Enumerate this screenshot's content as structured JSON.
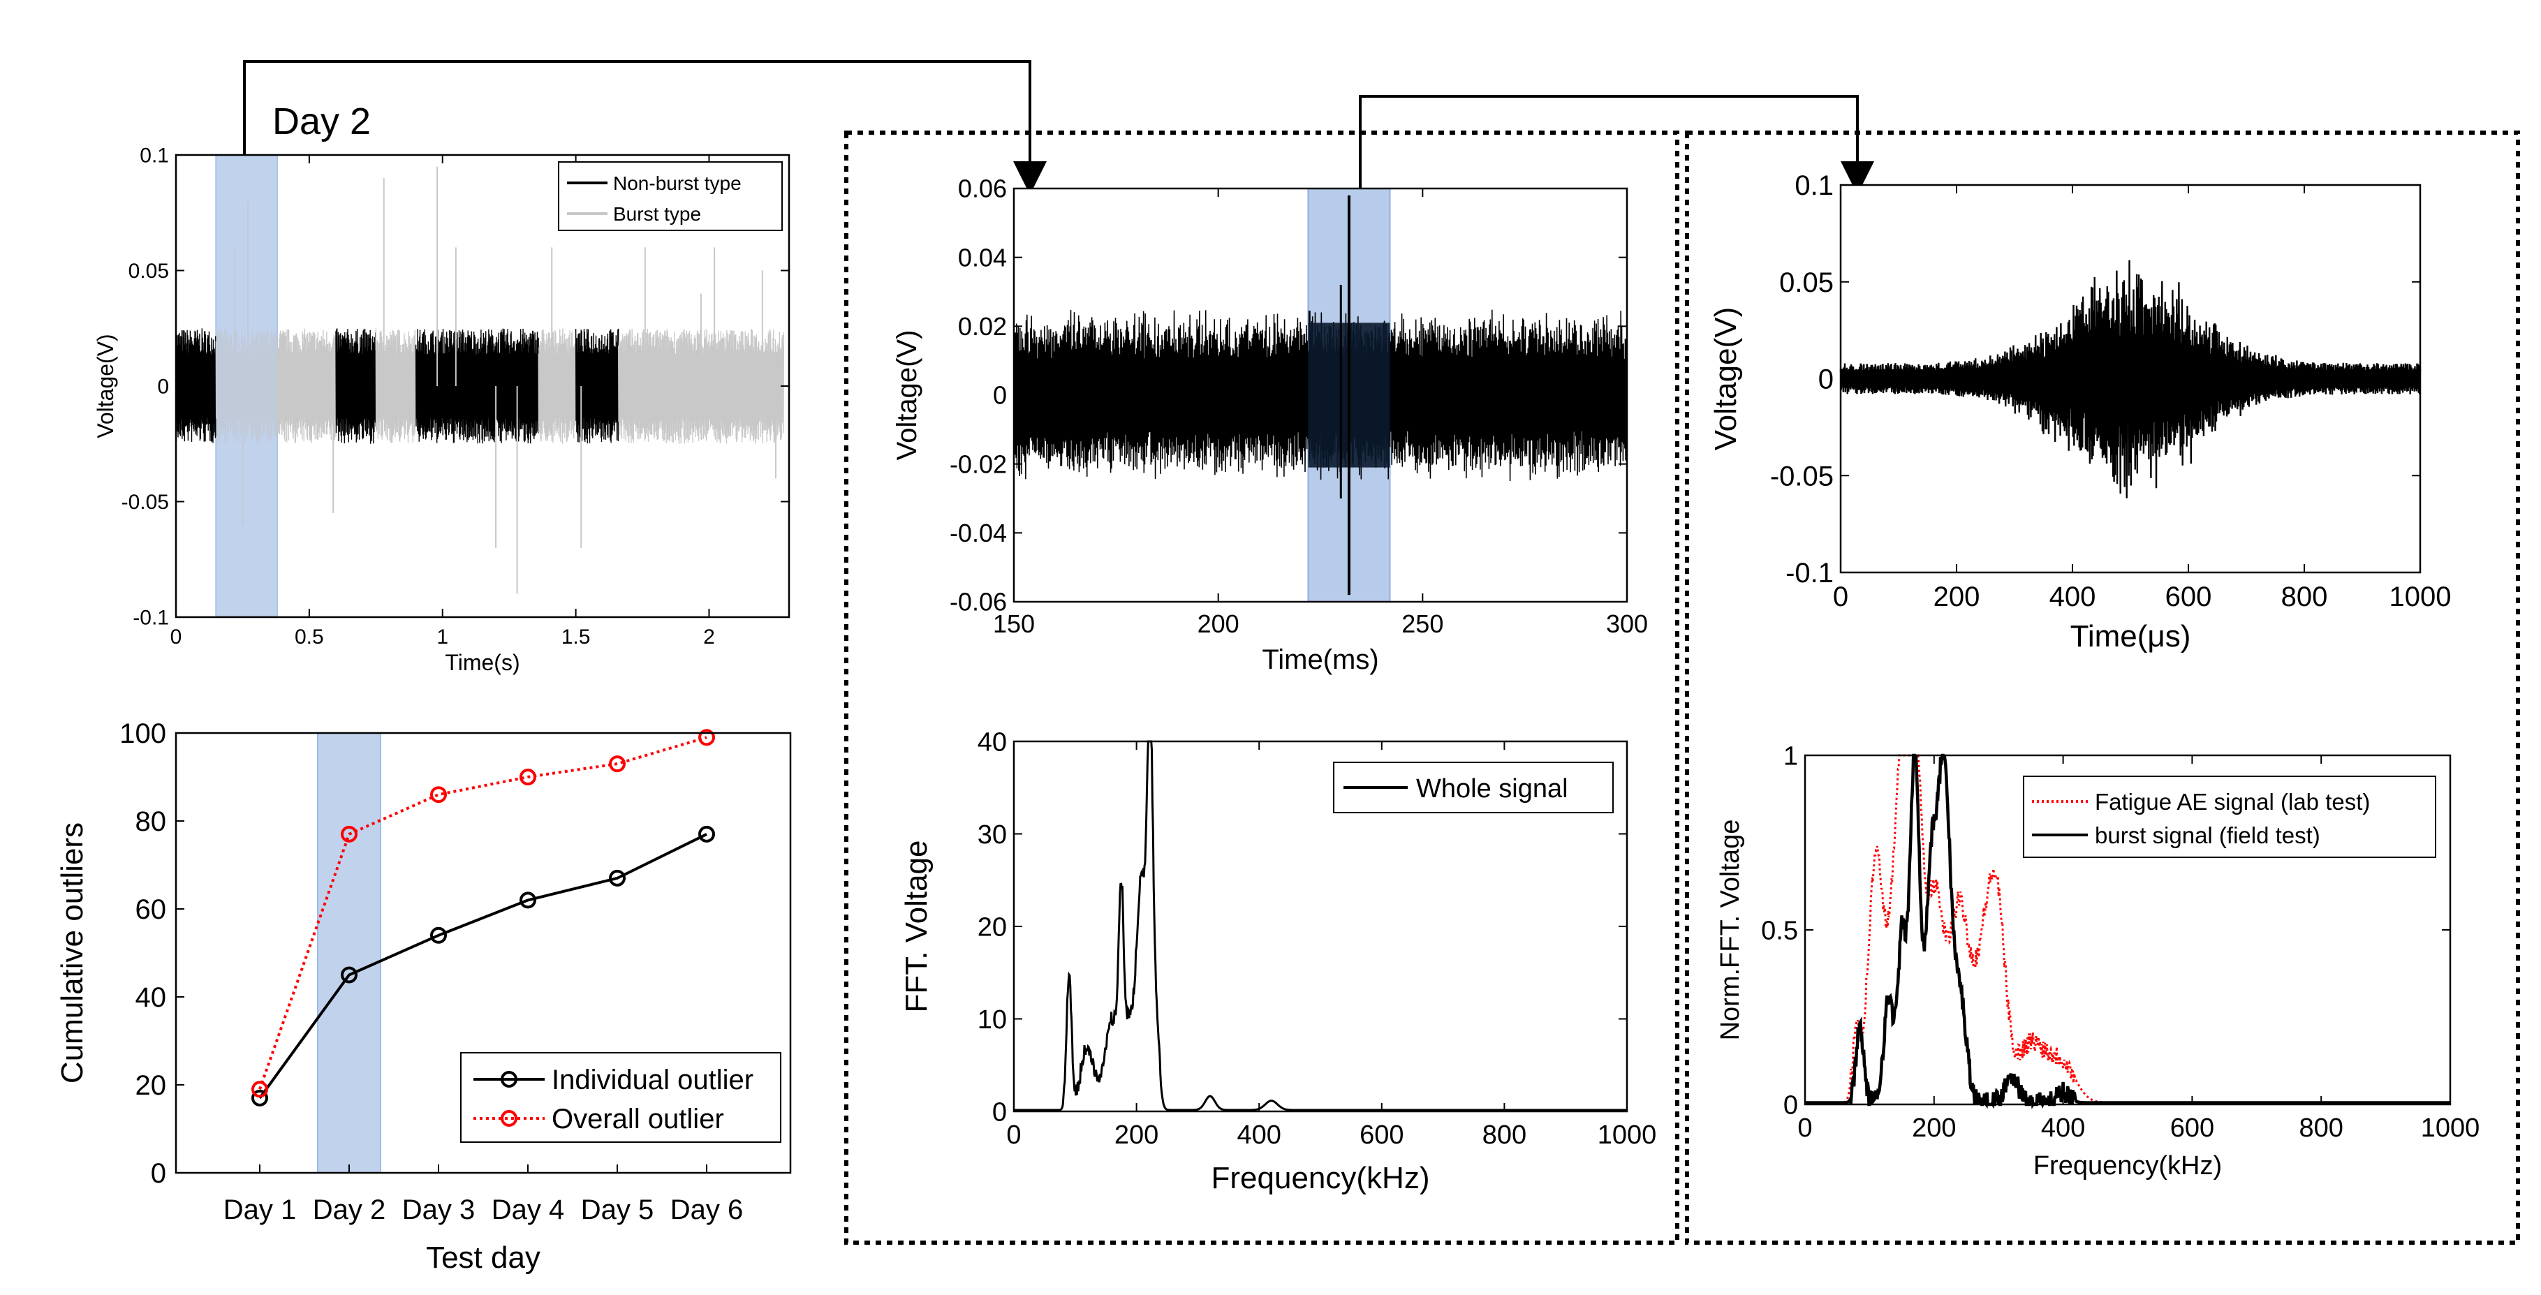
{
  "colors": {
    "black": "#000000",
    "gray": "#c8c8c8",
    "red": "#ff0000",
    "highlight_fill": "#b7cbea",
    "highlight_stroke": "#8fb0e0",
    "dark_fill": "#0b1a2e"
  },
  "annotation": {
    "day_label": "Day 2"
  },
  "chart_data": [
    {
      "id": "daily_signal",
      "type": "line",
      "xlabel": "Time(s)",
      "ylabel": "Voltage(V)",
      "xlim": [
        0,
        2.3
      ],
      "ylim": [
        -0.1,
        0.1
      ],
      "xticks": [
        0,
        0.5,
        1,
        1.5,
        2
      ],
      "xtick_labels": [
        "0",
        "0.5",
        "1",
        "1.5",
        "2"
      ],
      "yticks": [
        -0.1,
        -0.05,
        0,
        0.05,
        0.1
      ],
      "ytick_labels": [
        "-0.1",
        "-0.05",
        "0",
        "0.05",
        "0.1"
      ],
      "legend": [
        "Non-burst type",
        "Burst type"
      ],
      "legend_placement": "top-right",
      "highlight_x": [
        0.15,
        0.38
      ],
      "segments": [
        {
          "type": "Non-burst type",
          "x": [
            0,
            0.15
          ]
        },
        {
          "type": "Burst type",
          "x": [
            0.15,
            0.6
          ]
        },
        {
          "type": "Non-burst type",
          "x": [
            0.6,
            0.75
          ]
        },
        {
          "type": "Burst type",
          "x": [
            0.75,
            0.9
          ]
        },
        {
          "type": "Non-burst type",
          "x": [
            0.9,
            1.36
          ]
        },
        {
          "type": "Burst type",
          "x": [
            1.36,
            1.5
          ]
        },
        {
          "type": "Non-burst type",
          "x": [
            1.5,
            1.66
          ]
        },
        {
          "type": "Burst type",
          "x": [
            1.66,
            2.28
          ]
        }
      ],
      "noise_amplitude": 0.025,
      "spikes": [
        [
          0.22,
          0.06
        ],
        [
          0.25,
          -0.06
        ],
        [
          0.27,
          0.08
        ],
        [
          0.59,
          -0.055
        ],
        [
          0.78,
          0.09
        ],
        [
          0.98,
          0.095
        ],
        [
          1.05,
          0.06
        ],
        [
          1.2,
          -0.07
        ],
        [
          1.28,
          -0.09
        ],
        [
          1.41,
          0.06
        ],
        [
          1.52,
          -0.07
        ],
        [
          1.76,
          0.06
        ],
        [
          1.97,
          0.04
        ],
        [
          2.02,
          0.06
        ],
        [
          2.2,
          0.05
        ],
        [
          2.25,
          -0.04
        ]
      ]
    },
    {
      "id": "cumulative_outliers",
      "type": "line",
      "xlabel": "Test day",
      "ylabel": "Cumulative outliers",
      "categories": [
        "Day 1",
        "Day 2",
        "Day 3",
        "Day 4",
        "Day 5",
        "Day 6"
      ],
      "ylim": [
        0,
        100
      ],
      "yticks": [
        0,
        20,
        40,
        60,
        80,
        100
      ],
      "ytick_labels": [
        "0",
        "20",
        "40",
        "60",
        "80",
        "100"
      ],
      "legend_placement": "bottom-right",
      "highlight_category": "Day 2",
      "series": [
        {
          "name": "Individual outlier",
          "color": "#000000",
          "style": "solid",
          "values": [
            17,
            45,
            54,
            62,
            67,
            77
          ]
        },
        {
          "name": "Overall outlier",
          "color": "#ff0000",
          "style": "dotted",
          "values": [
            19,
            77,
            86,
            90,
            93,
            99
          ]
        }
      ]
    },
    {
      "id": "zoomed_signal",
      "type": "line",
      "xlabel": "Time(ms)",
      "ylabel": "Voltage(V)",
      "xlim": [
        150,
        300
      ],
      "ylim": [
        -0.06,
        0.06
      ],
      "xticks": [
        150,
        200,
        250,
        300
      ],
      "xtick_labels": [
        "150",
        "200",
        "250",
        "300"
      ],
      "yticks": [
        -0.06,
        -0.04,
        -0.02,
        0,
        0.02,
        0.04,
        0.06
      ],
      "ytick_labels": [
        "-0.06",
        "-0.04",
        "-0.02",
        "0",
        "0.02",
        "0.04",
        "0.06"
      ],
      "highlight_x": [
        222,
        242
      ],
      "noise_amplitude": 0.022,
      "spike": {
        "x": 232,
        "max": 0.058,
        "min": -0.058
      }
    },
    {
      "id": "whole_fft",
      "type": "line",
      "xlabel": "Frequency(kHz)",
      "ylabel": "FFT. Voltage",
      "xlim": [
        0,
        1000
      ],
      "ylim": [
        0,
        40
      ],
      "xticks": [
        0,
        200,
        400,
        600,
        800,
        1000
      ],
      "xtick_labels": [
        "0",
        "200",
        "400",
        "600",
        "800",
        "1000"
      ],
      "yticks": [
        0,
        10,
        20,
        30,
        40
      ],
      "ytick_labels": [
        "0",
        "10",
        "20",
        "30",
        "40"
      ],
      "legend_placement": "top-right",
      "series": [
        {
          "name": "Whole signal",
          "color": "#000000",
          "peaks": [
            [
              90,
              14,
              4
            ],
            [
              120,
              6,
              10
            ],
            [
              160,
              9,
              12
            ],
            [
              175,
              17,
              4
            ],
            [
              190,
              9,
              10
            ],
            [
              205,
              12,
              6
            ],
            [
              222,
              30,
              4
            ],
            [
              215,
              18,
              8
            ],
            [
              230,
              10,
              6
            ],
            [
              320,
              1.5,
              8
            ],
            [
              420,
              1,
              10
            ]
          ]
        }
      ]
    },
    {
      "id": "burst_signal",
      "type": "line",
      "xlabel": "Time(μs)",
      "ylabel": "Voltage(V)",
      "xlim": [
        0,
        1000
      ],
      "ylim": [
        -0.1,
        0.1
      ],
      "xticks": [
        0,
        200,
        400,
        600,
        800,
        1000
      ],
      "xtick_labels": [
        "0",
        "200",
        "400",
        "600",
        "800",
        "1000"
      ],
      "yticks": [
        -0.1,
        -0.05,
        0,
        0.05,
        0.1
      ],
      "ytick_labels": [
        "-0.1",
        "-0.05",
        "0",
        "0.05",
        "0.1"
      ],
      "noise_amplitude": 0.008,
      "burst": {
        "center": 500,
        "width": 110,
        "amplitude": 0.058
      }
    },
    {
      "id": "normalized_fft",
      "type": "line",
      "xlabel": "Frequency(kHz)",
      "ylabel": "Norm.FFT. Voltage",
      "xlim": [
        0,
        1000
      ],
      "ylim": [
        0,
        1
      ],
      "xticks": [
        0,
        200,
        400,
        600,
        800,
        1000
      ],
      "xtick_labels": [
        "0",
        "200",
        "400",
        "600",
        "800",
        "1000"
      ],
      "yticks": [
        0,
        0.5,
        1
      ],
      "ytick_labels": [
        "0",
        "0.5",
        "1"
      ],
      "legend_placement": "top-right",
      "series": [
        {
          "name": "Fatigue AE signal (lab test)",
          "color": "#ff0000",
          "style": "dotted",
          "peaks": [
            [
              80,
              0.2,
              6
            ],
            [
              110,
              0.7,
              12
            ],
            [
              150,
              1.0,
              14
            ],
            [
              170,
              0.8,
              10
            ],
            [
              200,
              0.6,
              15
            ],
            [
              240,
              0.55,
              15
            ],
            [
              280,
              0.45,
              15
            ],
            [
              300,
              0.4,
              12
            ],
            [
              350,
              0.17,
              25
            ],
            [
              400,
              0.1,
              20
            ]
          ]
        },
        {
          "name": "burst signal (field test)",
          "color": "#000000",
          "style": "solid",
          "peaks": [
            [
              85,
              0.22,
              6
            ],
            [
              130,
              0.3,
              8
            ],
            [
              170,
              1.0,
              8
            ],
            [
              150,
              0.45,
              6
            ],
            [
              215,
              0.97,
              10
            ],
            [
              195,
              0.6,
              8
            ],
            [
              240,
              0.3,
              10
            ],
            [
              320,
              0.08,
              10
            ],
            [
              400,
              0.03,
              10
            ]
          ]
        }
      ]
    }
  ]
}
